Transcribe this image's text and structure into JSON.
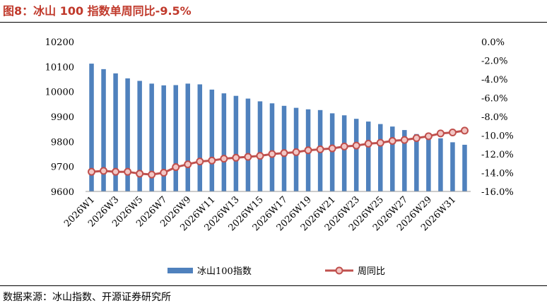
{
  "title": "图8：冰山 100 指数单周同比-9.5%",
  "source": "数据来源：冰山指数、开源证券研究所",
  "colors": {
    "bar": "#4f81bd",
    "line": "#c0504d",
    "marker_fill": "#f2c6c4",
    "title": "#c0392b"
  },
  "chart_data": {
    "type": "bar+line",
    "categories": [
      "2026W1",
      "2026W2",
      "2026W3",
      "2026W4",
      "2026W5",
      "2026W6",
      "2026W7",
      "2026W8",
      "2026W9",
      "2026W10",
      "2026W11",
      "2026W12",
      "2026W13",
      "2026W14",
      "2026W15",
      "2026W16",
      "2026W17",
      "2026W18",
      "2026W19",
      "2026W20",
      "2026W21",
      "2026W22",
      "2026W23",
      "2026W24",
      "2026W25",
      "2026W26",
      "2026W27",
      "2026W28",
      "2026W29",
      "2026W30",
      "2026W31",
      "2026W32"
    ],
    "x_tick_labels": [
      "2026W1",
      "2026W3",
      "2026W5",
      "2026W7",
      "2026W9",
      "2026W11",
      "2026W13",
      "2026W15",
      "2026W17",
      "2026W19",
      "2026W21",
      "2026W23",
      "2026W25",
      "2026W27",
      "2026W29",
      "2026W31"
    ],
    "series": [
      {
        "name": "冰山100指数",
        "type": "bar",
        "axis": "left",
        "values": [
          10112,
          10090,
          10073,
          10053,
          10043,
          10032,
          10025,
          10026,
          10032,
          10029,
          10008,
          9993,
          9983,
          9972,
          9961,
          9953,
          9943,
          9935,
          9929,
          9926,
          9913,
          9905,
          9891,
          9880,
          9870,
          9860,
          9846,
          9830,
          9822,
          9813,
          9797,
          9787
        ]
      },
      {
        "name": "周同比",
        "type": "line",
        "axis": "right",
        "values": [
          -13.9,
          -13.8,
          -13.9,
          -13.9,
          -14.1,
          -14.2,
          -14.0,
          -13.4,
          -13.1,
          -12.8,
          -12.7,
          -12.5,
          -12.4,
          -12.3,
          -12.2,
          -12.0,
          -11.9,
          -11.8,
          -11.6,
          -11.5,
          -11.4,
          -11.2,
          -11.1,
          -10.9,
          -10.8,
          -10.6,
          -10.5,
          -10.3,
          -10.1,
          -9.8,
          -9.7,
          -9.5
        ]
      }
    ],
    "y_left": {
      "min": 9600,
      "max": 10200,
      "ticks": [
        "9600",
        "9700",
        "9800",
        "9900",
        "10000",
        "10100",
        "10200"
      ]
    },
    "y_right": {
      "min": -16,
      "max": 0,
      "ticks": [
        "0.0%",
        "-2.0%",
        "-4.0%",
        "-6.0%",
        "-8.0%",
        "-10.0%",
        "-12.0%",
        "-14.0%",
        "-16.0%"
      ]
    },
    "grid": false,
    "legend_position": "bottom"
  }
}
